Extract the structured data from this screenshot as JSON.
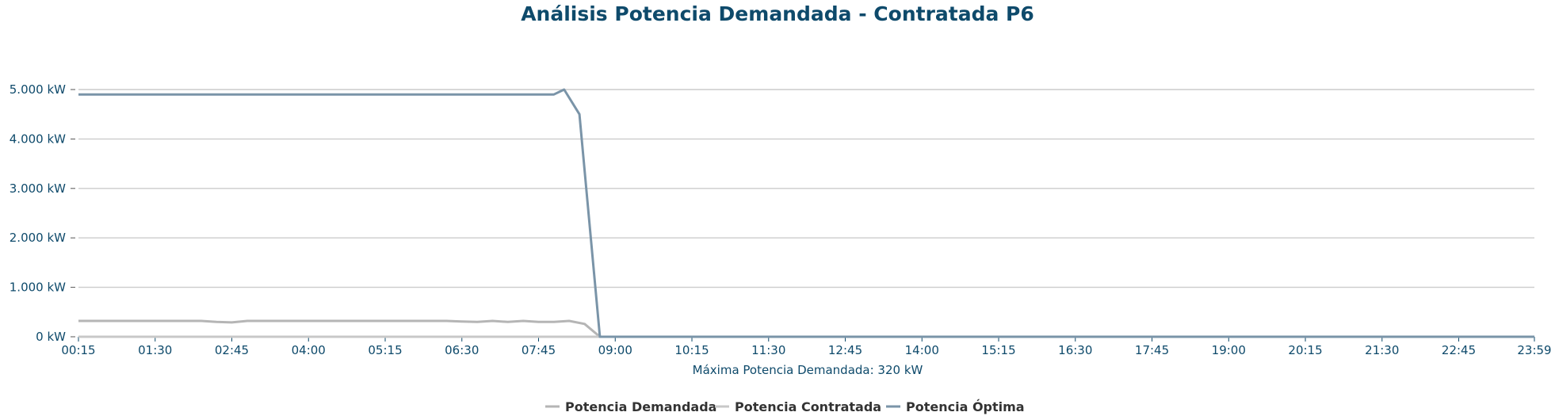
{
  "chart_data": {
    "type": "line",
    "title": "Análisis Potencia Demandada - Contratada P6",
    "xlabel": "Máxima Potencia Demandada: 320 kW",
    "ylabel": "",
    "ylim": [
      0,
      5000
    ],
    "ytick_labels": [
      "0 kW",
      "1.000 kW",
      "2.000 kW",
      "3.000 kW",
      "4.000 kW",
      "5.000 kW"
    ],
    "ytick_values": [
      0,
      1000,
      2000,
      3000,
      4000,
      5000
    ],
    "xtick_labels": [
      "00:15",
      "01:30",
      "02:45",
      "04:00",
      "05:15",
      "06:30",
      "07:45",
      "09:00",
      "10:15",
      "11:30",
      "12:45",
      "14:00",
      "15:15",
      "16:30",
      "17:45",
      "19:00",
      "20:15",
      "21:30",
      "22:45",
      "23:59"
    ],
    "grid": true,
    "legend_position": "bottom",
    "series": [
      {
        "name": "Potencia Demandada",
        "color": "#b5b5b5",
        "points": [
          [
            "00:15",
            320
          ],
          [
            "02:15",
            320
          ],
          [
            "02:30",
            300
          ],
          [
            "02:45",
            290
          ],
          [
            "03:00",
            320
          ],
          [
            "06:15",
            320
          ],
          [
            "06:30",
            310
          ],
          [
            "06:45",
            300
          ],
          [
            "07:00",
            320
          ],
          [
            "07:15",
            300
          ],
          [
            "07:30",
            320
          ],
          [
            "07:45",
            300
          ],
          [
            "08:00",
            300
          ],
          [
            "08:15",
            320
          ],
          [
            "08:30",
            260
          ],
          [
            "08:45",
            0
          ],
          [
            "09:00",
            0
          ],
          [
            "23:59",
            0
          ]
        ]
      },
      {
        "name": "Potencia Contratada",
        "color": "#c8c8c8",
        "points": [
          [
            "00:15",
            0
          ],
          [
            "23:59",
            0
          ]
        ]
      },
      {
        "name": "Potencia Óptima",
        "color": "#7a94a8",
        "points": [
          [
            "00:15",
            4900
          ],
          [
            "08:00",
            4900
          ],
          [
            "08:10",
            5000
          ],
          [
            "08:25",
            4500
          ],
          [
            "08:45",
            0
          ],
          [
            "09:00",
            0
          ],
          [
            "23:59",
            0
          ]
        ]
      }
    ]
  }
}
